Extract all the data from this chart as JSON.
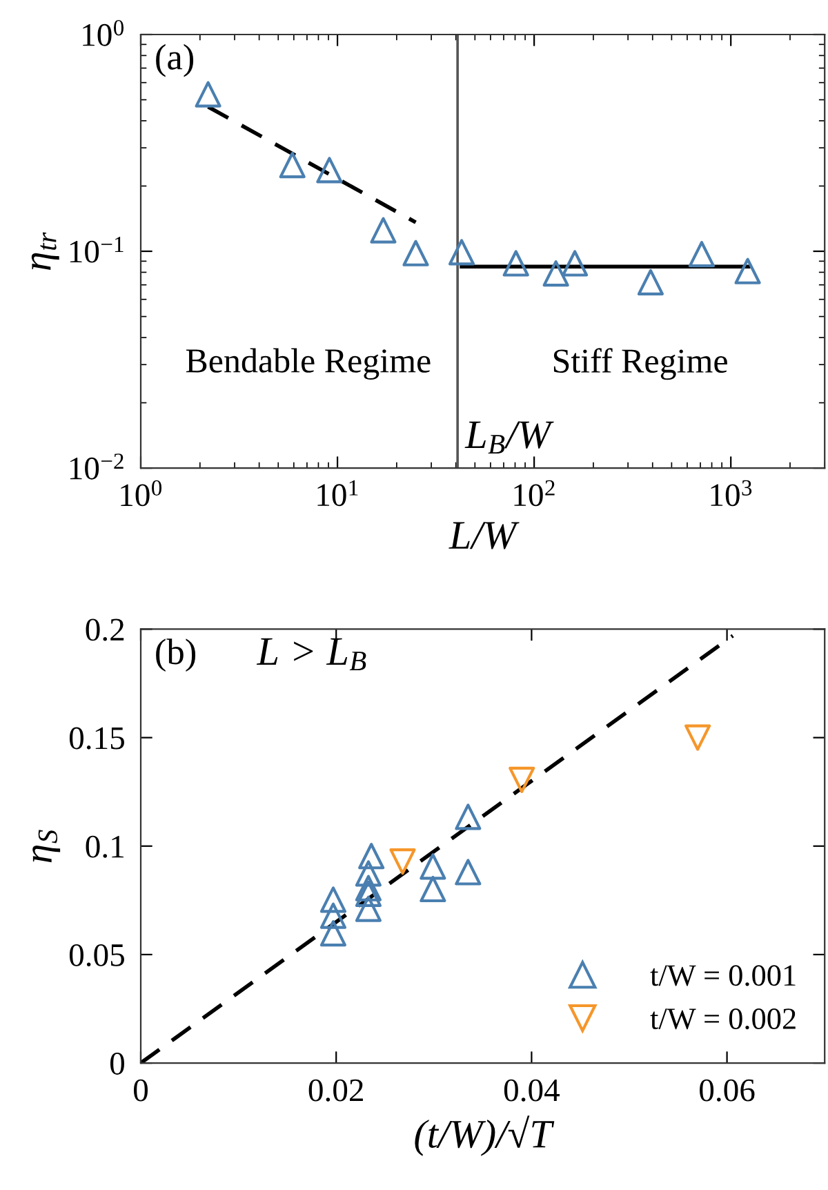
{
  "chart_data": [
    {
      "type": "scatter",
      "xlabel": "L/W",
      "ylabel": "η$_{tr}$",
      "log": "xy",
      "xlim": [
        1,
        3000
      ],
      "ylim": [
        0.01,
        1
      ],
      "xticks": [
        {
          "value": 1,
          "label": "10$^{0}$"
        },
        {
          "value": 10,
          "label": "10$^{1}$"
        },
        {
          "value": 100,
          "label": "10$^{2}$"
        },
        {
          "value": 1000,
          "label": "10$^{3}$"
        }
      ],
      "yticks": [
        {
          "value": 0.01,
          "label": "10$^{−2}$"
        },
        {
          "value": 0.1,
          "label": "10$^{−1}$"
        },
        {
          "value": 1,
          "label": "10$^{0}$"
        }
      ],
      "grid": false,
      "legend": false,
      "annotations": [
        "(a)",
        "Bendable Regime",
        "Stiff Regime"
      ],
      "ref_lines": [
        {
          "axis": "x",
          "value": 40.8,
          "label": "L$_{B}$/W",
          "color": "#555555",
          "line_style": "solid"
        }
      ],
      "series": [
        {
          "marker": "triangle",
          "color": "#4a7fb0",
          "x": [
            2.2,
            5.9,
            9.1,
            17.1,
            25,
            42.8,
            80.8,
            129,
            161,
            391,
            711,
            1218
          ],
          "values": [
            0.53,
            0.25,
            0.237,
            0.125,
            0.098,
            0.099,
            0.088,
            0.079,
            0.088,
            0.072,
            0.097,
            0.081
          ]
        },
        {
          "type": "line",
          "color": "#000000",
          "line_style": "dashed",
          "x": [
            2.2,
            25
          ],
          "values": [
            0.464,
            0.136
          ]
        },
        {
          "type": "line",
          "color": "#000000",
          "line_style": "solid",
          "x": [
            42.8,
            1230
          ],
          "values": [
            0.085,
            0.085
          ]
        }
      ]
    },
    {
      "type": "scatter",
      "xlabel": "(t/W)/√T",
      "ylabel": "η$_{S}$",
      "xlim": [
        0,
        0.07
      ],
      "ylim": [
        0,
        0.2
      ],
      "xticks": [
        0,
        0.02,
        0.04,
        0.06
      ],
      "yticks": [
        0,
        0.05,
        0.1,
        0.15,
        0.2
      ],
      "grid": false,
      "legend": "bottom right",
      "annotations": [
        "(b)",
        "L > L$_{B}$"
      ],
      "series": [
        {
          "marker": "triangle",
          "name": "t/W = 0.001",
          "color": "#4a7fb0",
          "x": [
            0.0197,
            0.0197,
            0.0197,
            0.0236,
            0.0233,
            0.0233,
            0.0233,
            0.0233,
            0.0299,
            0.0299,
            0.0335,
            0.0335
          ],
          "values": [
            0.0753,
            0.0679,
            0.0598,
            0.0954,
            0.0874,
            0.0806,
            0.078,
            0.0711,
            0.0906,
            0.0802,
            0.1135,
            0.088
          ]
        },
        {
          "marker": "triangle",
          "name": "t/W = 0.002",
          "color": "#f5962a",
          "x": [
            0.0268,
            0.039,
            0.057
          ],
          "values": [
            0.0929,
            0.1305,
            0.15
          ]
        },
        {
          "type": "line",
          "color": "#000000",
          "line_style": "dashed",
          "x": [
            0,
            0.0606
          ],
          "values": [
            0,
            0.197
          ]
        }
      ]
    }
  ]
}
